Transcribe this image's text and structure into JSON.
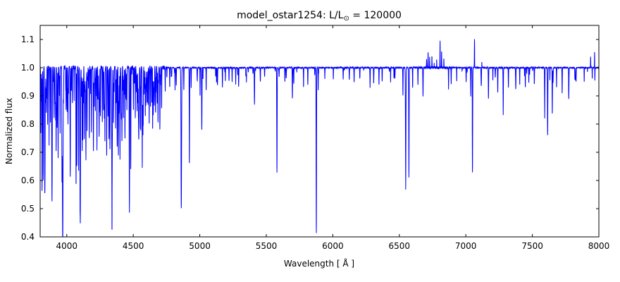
{
  "chart_data": {
    "type": "line",
    "title": {
      "prefix": "model_ostar1254: L/L",
      "sub": "⊙",
      "suffix": " = 120000"
    },
    "xlabel": "Wavelength [ Å ]",
    "ylabel": "Normalized flux",
    "xlim": [
      3800,
      8000
    ],
    "ylim": [
      0.4,
      1.15
    ],
    "xticks": [
      4000,
      4500,
      5000,
      5500,
      6000,
      6500,
      7000,
      7500,
      8000
    ],
    "yticks": [
      0.4,
      0.5,
      0.6,
      0.7,
      0.8,
      0.9,
      1.0,
      1.1
    ],
    "line_color": "#0000ff",
    "frame_color": "#000000",
    "continuum": 1.0,
    "sample_step": 0.5,
    "noise": {
      "seed": 1337,
      "regions": [
        {
          "range": [
            3800,
            4750
          ],
          "amp": 0.007
        },
        {
          "range": [
            4750,
            6600
          ],
          "amp": 0.0022
        },
        {
          "range": [
            6600,
            6900
          ],
          "amp": 0.004
        },
        {
          "range": [
            6900,
            8000
          ],
          "amp": 0.0022
        }
      ]
    },
    "forest": [
      {
        "range": [
          3800,
          4720
        ],
        "count": 150,
        "depth": [
          0.86,
          0.99
        ],
        "width": [
          0.8,
          2.2
        ]
      },
      {
        "range": [
          4720,
          5400
        ],
        "count": 22,
        "depth": [
          0.93,
          0.99
        ],
        "width": [
          1.0,
          2.0
        ]
      },
      {
        "range": [
          5400,
          6500
        ],
        "count": 18,
        "depth": [
          0.94,
          0.995
        ],
        "width": [
          1.0,
          2.0
        ]
      },
      {
        "range": [
          6900,
          8000
        ],
        "count": 20,
        "depth": [
          0.94,
          0.99
        ],
        "width": [
          1.0,
          2.0
        ]
      }
    ],
    "absorption_lines": [
      [
        3805,
        0.77,
        1.5
      ],
      [
        3814,
        0.62,
        1.5
      ],
      [
        3823,
        0.6,
        2
      ],
      [
        3835,
        0.55,
        2.5
      ],
      [
        3846,
        0.85,
        1.5
      ],
      [
        3856,
        0.8,
        1.5
      ],
      [
        3867,
        0.72,
        1.5
      ],
      [
        3878,
        0.8,
        1.5
      ],
      [
        3889,
        0.52,
        2.5
      ],
      [
        3905,
        0.85,
        1.5
      ],
      [
        3920,
        0.72,
        1.5
      ],
      [
        3927,
        0.8,
        1.5
      ],
      [
        3935,
        0.68,
        1.5
      ],
      [
        3950,
        0.85,
        1.5
      ],
      [
        3964,
        0.62,
        1.8
      ],
      [
        3970,
        0.5,
        2.5
      ],
      [
        3995,
        0.85,
        1.5
      ],
      [
        4009,
        0.8,
        1.5
      ],
      [
        4026,
        0.61,
        2
      ],
      [
        4042,
        0.88,
        1.5
      ],
      [
        4070,
        0.7,
        1.8
      ],
      [
        4076,
        0.75,
        1.5
      ],
      [
        4089,
        0.63,
        1.8
      ],
      [
        4101,
        0.5,
        3
      ],
      [
        4116,
        0.73,
        1.5
      ],
      [
        4121,
        0.75,
        1.5
      ],
      [
        4132,
        0.8,
        1.5
      ],
      [
        4144,
        0.7,
        1.8
      ],
      [
        4153,
        0.78,
        1.5
      ],
      [
        4170,
        0.82,
        1.5
      ],
      [
        4185,
        0.85,
        1.5
      ],
      [
        4200,
        0.76,
        1.8
      ],
      [
        4215,
        0.85,
        1.5
      ],
      [
        4227,
        0.8,
        1.5
      ],
      [
        4242,
        0.85,
        1.5
      ],
      [
        4253,
        0.83,
        1.5
      ],
      [
        4267,
        0.8,
        1.5
      ],
      [
        4276,
        0.85,
        1.5
      ],
      [
        4287,
        0.85,
        1.5
      ],
      [
        4300,
        0.74,
        1.8
      ],
      [
        4310,
        0.82,
        1.5
      ],
      [
        4317,
        0.8,
        1.5
      ],
      [
        4325,
        0.82,
        1.5
      ],
      [
        4340,
        0.51,
        3
      ],
      [
        4351,
        0.8,
        1.5
      ],
      [
        4367,
        0.78,
        1.5
      ],
      [
        4379,
        0.75,
        1.5
      ],
      [
        4388,
        0.7,
        1.8
      ],
      [
        4400,
        0.8,
        1.5
      ],
      [
        4415,
        0.76,
        1.5
      ],
      [
        4426,
        0.82,
        1.5
      ],
      [
        4437,
        0.85,
        1.5
      ],
      [
        4452,
        0.85,
        1.5
      ],
      [
        4471,
        0.49,
        2.2
      ],
      [
        4481,
        0.72,
        1.5
      ],
      [
        4501,
        0.85,
        1.5
      ],
      [
        4515,
        0.82,
        1.5
      ],
      [
        4529,
        0.85,
        1.5
      ],
      [
        4541,
        0.78,
        1.8
      ],
      [
        4553,
        0.79,
        1.5
      ],
      [
        4568,
        0.82,
        1.5
      ],
      [
        4575,
        0.85,
        1.5
      ],
      [
        4590,
        0.84,
        1.5
      ],
      [
        4604,
        0.88,
        1.5
      ],
      [
        4620,
        0.88,
        1.5
      ],
      [
        4630,
        0.86,
        1.5
      ],
      [
        4640,
        0.87,
        1.5
      ],
      [
        4650,
        0.86,
        1.5
      ],
      [
        4658,
        0.88,
        1.5
      ],
      [
        4686,
        0.8,
        1.8
      ],
      [
        4700,
        0.9,
        1.5
      ],
      [
        4713,
        0.85,
        1.5
      ],
      [
        4740,
        0.92,
        1.5
      ],
      [
        4774,
        0.93,
        1.5
      ],
      [
        4814,
        0.92,
        1.5
      ],
      [
        4861,
        0.5,
        3
      ],
      [
        4880,
        0.92,
        1.5
      ],
      [
        4922,
        0.66,
        2
      ],
      [
        4935,
        0.93,
        1.5
      ],
      [
        5002,
        0.9,
        1.5
      ],
      [
        5015,
        0.79,
        2
      ],
      [
        5048,
        0.92,
        1.5
      ],
      [
        5170,
        0.93,
        1.5
      ],
      [
        5243,
        0.95,
        1.5
      ],
      [
        5270,
        0.94,
        1.5
      ],
      [
        5411,
        0.87,
        2
      ],
      [
        5455,
        0.95,
        1.5
      ],
      [
        5580,
        0.63,
        2
      ],
      [
        5640,
        0.95,
        1.5
      ],
      [
        5696,
        0.89,
        1.8
      ],
      [
        5780,
        0.93,
        1.5
      ],
      [
        5812,
        0.94,
        1.5
      ],
      [
        5876,
        0.44,
        2.2
      ],
      [
        5890,
        0.92,
        1.2
      ],
      [
        5940,
        0.96,
        1.5
      ],
      [
        6004,
        0.96,
        1.5
      ],
      [
        6078,
        0.96,
        1.5
      ],
      [
        6160,
        0.95,
        1.5
      ],
      [
        6203,
        0.96,
        1.5
      ],
      [
        6280,
        0.93,
        1.8
      ],
      [
        6347,
        0.94,
        1.5
      ],
      [
        6371,
        0.95,
        1.5
      ],
      [
        6460,
        0.96,
        1.5
      ],
      [
        6527,
        0.9,
        1.5
      ],
      [
        6548,
        0.57,
        2.5
      ],
      [
        6572,
        0.61,
        2
      ],
      [
        6600,
        0.93,
        1.5
      ],
      [
        6640,
        0.94,
        1.5
      ],
      [
        6678,
        0.9,
        1.8
      ],
      [
        6870,
        0.92,
        1.5
      ],
      [
        6890,
        0.94,
        1.5
      ],
      [
        7002,
        0.95,
        1.5
      ],
      [
        7037,
        0.9,
        1.5
      ],
      [
        7050,
        0.63,
        2
      ],
      [
        7115,
        0.95,
        1.5
      ],
      [
        7170,
        0.89,
        1.8
      ],
      [
        7240,
        0.91,
        1.5
      ],
      [
        7281,
        0.83,
        1.8
      ],
      [
        7320,
        0.93,
        1.5
      ],
      [
        7405,
        0.94,
        1.5
      ],
      [
        7447,
        0.93,
        1.5
      ],
      [
        7515,
        0.94,
        1.5
      ],
      [
        7593,
        0.82,
        1.8
      ],
      [
        7615,
        0.76,
        2
      ],
      [
        7650,
        0.88,
        1.8
      ],
      [
        7682,
        0.93,
        1.5
      ],
      [
        7724,
        0.91,
        1.5
      ],
      [
        7774,
        0.89,
        2
      ],
      [
        7820,
        0.96,
        1.5
      ],
      [
        7890,
        0.95,
        1.2
      ],
      [
        7950,
        0.96,
        1.2
      ]
    ],
    "emission_lines": [
      [
        6705,
        1.03,
        1.5
      ],
      [
        6716,
        1.055,
        1.5
      ],
      [
        6728,
        1.035,
        1.2
      ],
      [
        6745,
        1.04,
        1.5
      ],
      [
        6762,
        1.02,
        1.2
      ],
      [
        6781,
        1.03,
        1.2
      ],
      [
        6806,
        1.095,
        1.5
      ],
      [
        6818,
        1.06,
        1.2
      ],
      [
        6835,
        1.03,
        1.2
      ],
      [
        7065,
        1.1,
        1.5
      ],
      [
        7120,
        1.02,
        1.2
      ],
      [
        7938,
        1.04,
        1.2
      ],
      [
        7968,
        1.07,
        1.3
      ]
    ]
  }
}
